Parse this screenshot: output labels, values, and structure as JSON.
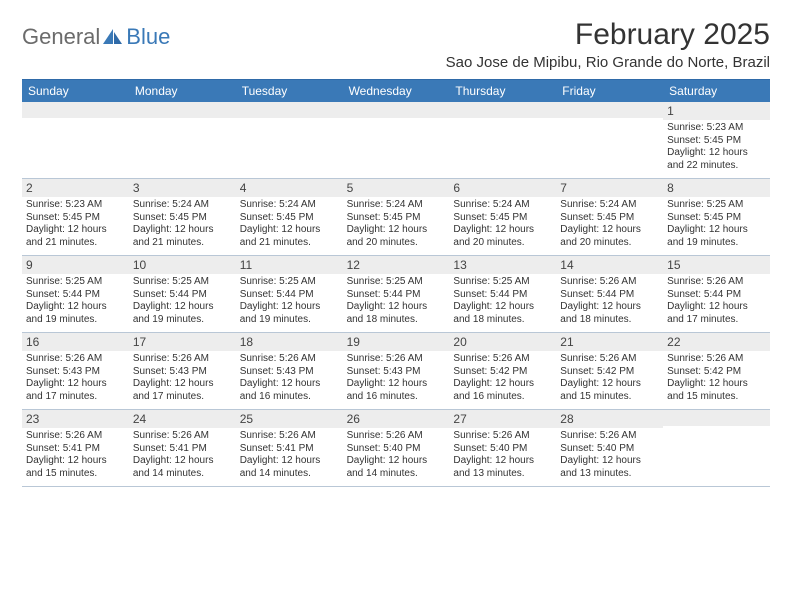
{
  "logo": {
    "part1": "General",
    "part2": "Blue"
  },
  "title": "February 2025",
  "location": "Sao Jose de Mipibu, Rio Grande do Norte, Brazil",
  "dayNames": [
    "Sunday",
    "Monday",
    "Tuesday",
    "Wednesday",
    "Thursday",
    "Friday",
    "Saturday"
  ],
  "colors": {
    "headerBar": "#3a79b7",
    "borderTop": "#2f6aa8",
    "weekBorder": "#b9c7d6",
    "dayNumBg": "#ededed",
    "text": "#333333",
    "logoGray": "#6b6b6b",
    "logoBlue": "#3a79b7"
  },
  "weeks": [
    [
      {
        "num": "",
        "sunrise": "",
        "sunset": "",
        "daylight": ""
      },
      {
        "num": "",
        "sunrise": "",
        "sunset": "",
        "daylight": ""
      },
      {
        "num": "",
        "sunrise": "",
        "sunset": "",
        "daylight": ""
      },
      {
        "num": "",
        "sunrise": "",
        "sunset": "",
        "daylight": ""
      },
      {
        "num": "",
        "sunrise": "",
        "sunset": "",
        "daylight": ""
      },
      {
        "num": "",
        "sunrise": "",
        "sunset": "",
        "daylight": ""
      },
      {
        "num": "1",
        "sunrise": "Sunrise: 5:23 AM",
        "sunset": "Sunset: 5:45 PM",
        "daylight": "Daylight: 12 hours and 22 minutes."
      }
    ],
    [
      {
        "num": "2",
        "sunrise": "Sunrise: 5:23 AM",
        "sunset": "Sunset: 5:45 PM",
        "daylight": "Daylight: 12 hours and 21 minutes."
      },
      {
        "num": "3",
        "sunrise": "Sunrise: 5:24 AM",
        "sunset": "Sunset: 5:45 PM",
        "daylight": "Daylight: 12 hours and 21 minutes."
      },
      {
        "num": "4",
        "sunrise": "Sunrise: 5:24 AM",
        "sunset": "Sunset: 5:45 PM",
        "daylight": "Daylight: 12 hours and 21 minutes."
      },
      {
        "num": "5",
        "sunrise": "Sunrise: 5:24 AM",
        "sunset": "Sunset: 5:45 PM",
        "daylight": "Daylight: 12 hours and 20 minutes."
      },
      {
        "num": "6",
        "sunrise": "Sunrise: 5:24 AM",
        "sunset": "Sunset: 5:45 PM",
        "daylight": "Daylight: 12 hours and 20 minutes."
      },
      {
        "num": "7",
        "sunrise": "Sunrise: 5:24 AM",
        "sunset": "Sunset: 5:45 PM",
        "daylight": "Daylight: 12 hours and 20 minutes."
      },
      {
        "num": "8",
        "sunrise": "Sunrise: 5:25 AM",
        "sunset": "Sunset: 5:45 PM",
        "daylight": "Daylight: 12 hours and 19 minutes."
      }
    ],
    [
      {
        "num": "9",
        "sunrise": "Sunrise: 5:25 AM",
        "sunset": "Sunset: 5:44 PM",
        "daylight": "Daylight: 12 hours and 19 minutes."
      },
      {
        "num": "10",
        "sunrise": "Sunrise: 5:25 AM",
        "sunset": "Sunset: 5:44 PM",
        "daylight": "Daylight: 12 hours and 19 minutes."
      },
      {
        "num": "11",
        "sunrise": "Sunrise: 5:25 AM",
        "sunset": "Sunset: 5:44 PM",
        "daylight": "Daylight: 12 hours and 19 minutes."
      },
      {
        "num": "12",
        "sunrise": "Sunrise: 5:25 AM",
        "sunset": "Sunset: 5:44 PM",
        "daylight": "Daylight: 12 hours and 18 minutes."
      },
      {
        "num": "13",
        "sunrise": "Sunrise: 5:25 AM",
        "sunset": "Sunset: 5:44 PM",
        "daylight": "Daylight: 12 hours and 18 minutes."
      },
      {
        "num": "14",
        "sunrise": "Sunrise: 5:26 AM",
        "sunset": "Sunset: 5:44 PM",
        "daylight": "Daylight: 12 hours and 18 minutes."
      },
      {
        "num": "15",
        "sunrise": "Sunrise: 5:26 AM",
        "sunset": "Sunset: 5:44 PM",
        "daylight": "Daylight: 12 hours and 17 minutes."
      }
    ],
    [
      {
        "num": "16",
        "sunrise": "Sunrise: 5:26 AM",
        "sunset": "Sunset: 5:43 PM",
        "daylight": "Daylight: 12 hours and 17 minutes."
      },
      {
        "num": "17",
        "sunrise": "Sunrise: 5:26 AM",
        "sunset": "Sunset: 5:43 PM",
        "daylight": "Daylight: 12 hours and 17 minutes."
      },
      {
        "num": "18",
        "sunrise": "Sunrise: 5:26 AM",
        "sunset": "Sunset: 5:43 PM",
        "daylight": "Daylight: 12 hours and 16 minutes."
      },
      {
        "num": "19",
        "sunrise": "Sunrise: 5:26 AM",
        "sunset": "Sunset: 5:43 PM",
        "daylight": "Daylight: 12 hours and 16 minutes."
      },
      {
        "num": "20",
        "sunrise": "Sunrise: 5:26 AM",
        "sunset": "Sunset: 5:42 PM",
        "daylight": "Daylight: 12 hours and 16 minutes."
      },
      {
        "num": "21",
        "sunrise": "Sunrise: 5:26 AM",
        "sunset": "Sunset: 5:42 PM",
        "daylight": "Daylight: 12 hours and 15 minutes."
      },
      {
        "num": "22",
        "sunrise": "Sunrise: 5:26 AM",
        "sunset": "Sunset: 5:42 PM",
        "daylight": "Daylight: 12 hours and 15 minutes."
      }
    ],
    [
      {
        "num": "23",
        "sunrise": "Sunrise: 5:26 AM",
        "sunset": "Sunset: 5:41 PM",
        "daylight": "Daylight: 12 hours and 15 minutes."
      },
      {
        "num": "24",
        "sunrise": "Sunrise: 5:26 AM",
        "sunset": "Sunset: 5:41 PM",
        "daylight": "Daylight: 12 hours and 14 minutes."
      },
      {
        "num": "25",
        "sunrise": "Sunrise: 5:26 AM",
        "sunset": "Sunset: 5:41 PM",
        "daylight": "Daylight: 12 hours and 14 minutes."
      },
      {
        "num": "26",
        "sunrise": "Sunrise: 5:26 AM",
        "sunset": "Sunset: 5:40 PM",
        "daylight": "Daylight: 12 hours and 14 minutes."
      },
      {
        "num": "27",
        "sunrise": "Sunrise: 5:26 AM",
        "sunset": "Sunset: 5:40 PM",
        "daylight": "Daylight: 12 hours and 13 minutes."
      },
      {
        "num": "28",
        "sunrise": "Sunrise: 5:26 AM",
        "sunset": "Sunset: 5:40 PM",
        "daylight": "Daylight: 12 hours and 13 minutes."
      },
      {
        "num": "",
        "sunrise": "",
        "sunset": "",
        "daylight": ""
      }
    ]
  ]
}
